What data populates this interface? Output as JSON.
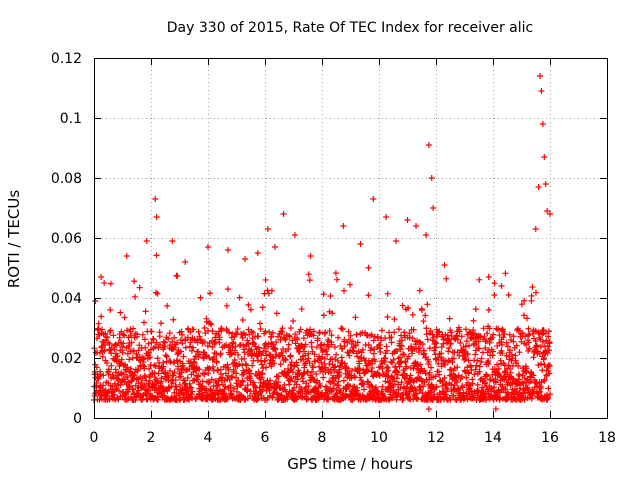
{
  "chart_data": {
    "type": "scatter",
    "title": "Day 330 of 2015, Rate Of TEC Index for receiver alic",
    "xlabel": "GPS time / hours",
    "ylabel": "ROTI / TECUs",
    "xlim": [
      0,
      18
    ],
    "ylim": [
      0,
      0.12
    ],
    "xticks": [
      0,
      2,
      4,
      6,
      8,
      10,
      12,
      14,
      16,
      18
    ],
    "xtick_labels": [
      "0",
      "2",
      "4",
      "6",
      "8",
      "10",
      "12",
      "14",
      "16",
      "18"
    ],
    "yticks": [
      0,
      0.02,
      0.04,
      0.06,
      0.08,
      0.1,
      0.12
    ],
    "ytick_labels": [
      "0",
      "0.02",
      "0.04",
      "0.06",
      "0.08",
      "0.1",
      "0.12"
    ],
    "grid": true,
    "marker": "+",
    "color": "#ff0000",
    "series": [
      {
        "name": "ROTI",
        "x_range": [
          0,
          16
        ],
        "typical_range": [
          0.006,
          0.03
        ],
        "notable_points": [
          {
            "x": 0.05,
            "y": 0.039
          },
          {
            "x": 0.25,
            "y": 0.047
          },
          {
            "x": 1.15,
            "y": 0.054
          },
          {
            "x": 1.85,
            "y": 0.059
          },
          {
            "x": 2.15,
            "y": 0.073
          },
          {
            "x": 2.2,
            "y": 0.067
          },
          {
            "x": 2.75,
            "y": 0.059
          },
          {
            "x": 3.2,
            "y": 0.052
          },
          {
            "x": 4.0,
            "y": 0.057
          },
          {
            "x": 4.7,
            "y": 0.056
          },
          {
            "x": 5.3,
            "y": 0.053
          },
          {
            "x": 5.75,
            "y": 0.055
          },
          {
            "x": 6.1,
            "y": 0.063
          },
          {
            "x": 6.35,
            "y": 0.057
          },
          {
            "x": 6.65,
            "y": 0.068
          },
          {
            "x": 7.05,
            "y": 0.061
          },
          {
            "x": 7.6,
            "y": 0.054
          },
          {
            "x": 8.75,
            "y": 0.064
          },
          {
            "x": 9.35,
            "y": 0.058
          },
          {
            "x": 9.8,
            "y": 0.073
          },
          {
            "x": 10.25,
            "y": 0.067
          },
          {
            "x": 10.6,
            "y": 0.059
          },
          {
            "x": 11.0,
            "y": 0.066
          },
          {
            "x": 11.3,
            "y": 0.064
          },
          {
            "x": 11.65,
            "y": 0.061
          },
          {
            "x": 11.75,
            "y": 0.091
          },
          {
            "x": 11.85,
            "y": 0.08
          },
          {
            "x": 11.9,
            "y": 0.07
          },
          {
            "x": 12.3,
            "y": 0.051
          },
          {
            "x": 13.85,
            "y": 0.047
          },
          {
            "x": 14.05,
            "y": 0.041
          },
          {
            "x": 14.3,
            "y": 0.044
          },
          {
            "x": 14.55,
            "y": 0.041
          },
          {
            "x": 15.5,
            "y": 0.063
          },
          {
            "x": 15.6,
            "y": 0.077
          },
          {
            "x": 15.65,
            "y": 0.114
          },
          {
            "x": 15.7,
            "y": 0.109
          },
          {
            "x": 15.75,
            "y": 0.098
          },
          {
            "x": 15.8,
            "y": 0.087
          },
          {
            "x": 15.85,
            "y": 0.078
          },
          {
            "x": 15.9,
            "y": 0.069
          },
          {
            "x": 16.0,
            "y": 0.068
          }
        ],
        "gaps": [
          {
            "x": 11.75,
            "y_low": 0.003
          },
          {
            "x": 14.1,
            "y_low": 0.003
          }
        ]
      }
    ]
  }
}
